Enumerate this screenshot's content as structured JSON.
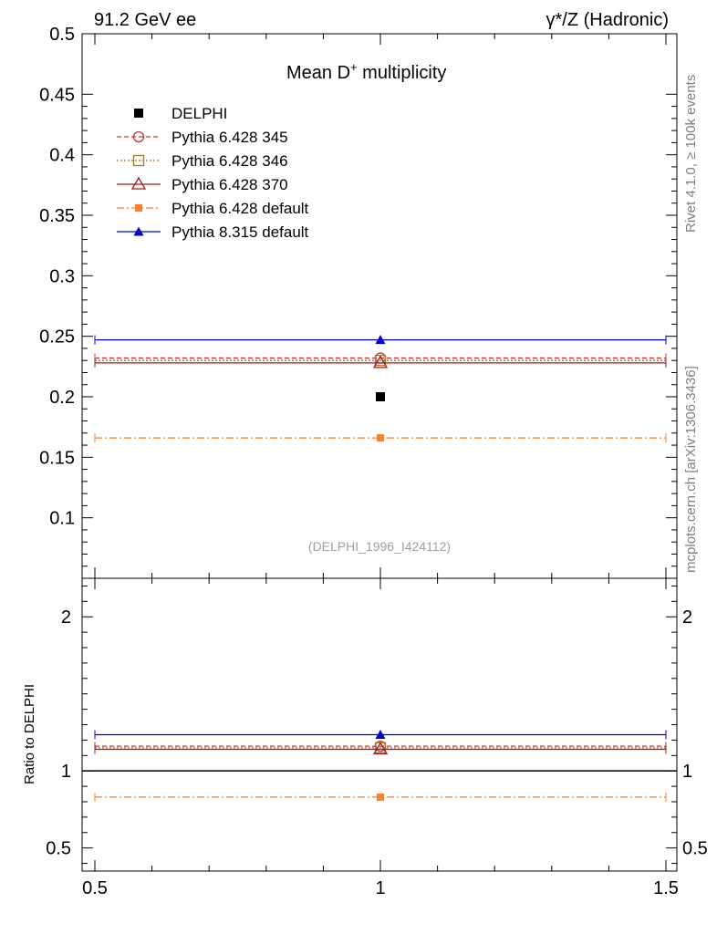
{
  "header": {
    "left": "91.2 GeV ee",
    "right": "γ*/Z (Hadronic)"
  },
  "side_text": {
    "rivet": "Rivet 4.1.0, ≥ 100k events",
    "mcplots": "mcplots.cern.ch [arXiv:1306.3436]"
  },
  "chart_data": {
    "type": "scatter",
    "title_main": "Mean D",
    "title_sup": "+",
    "title_rest": " multiplicity",
    "analysis_id": "(DELPHI_1996_I424112)",
    "xlim": [
      0.5,
      1.5
    ],
    "ylim": [
      0.05,
      0.5
    ],
    "ratio_ylim": [
      0.35,
      2.25
    ],
    "ratio_ylabel": "Ratio to DELPHI",
    "x_ticks": [
      {
        "v": 0.5,
        "label": "0.5"
      },
      {
        "v": 1,
        "label": "1"
      },
      {
        "v": 1.5,
        "label": "1.5"
      }
    ],
    "y_ticks": [
      {
        "v": 0.1,
        "label": "0.1"
      },
      {
        "v": 0.15,
        "label": "0.15"
      },
      {
        "v": 0.2,
        "label": "0.2"
      },
      {
        "v": 0.25,
        "label": "0.25"
      },
      {
        "v": 0.3,
        "label": "0.3"
      },
      {
        "v": 0.35,
        "label": "0.35"
      },
      {
        "v": 0.4,
        "label": "0.4"
      },
      {
        "v": 0.45,
        "label": "0.45"
      },
      {
        "v": 0.5,
        "label": "0.5"
      }
    ],
    "ratio_ticks": [
      {
        "v": 0.5,
        "label": "0.5"
      },
      {
        "v": 1,
        "label": "1"
      },
      {
        "v": 2,
        "label": "2"
      }
    ],
    "data": {
      "name": "DELPHI",
      "x": 1.0,
      "y": 0.2
    },
    "series": [
      {
        "name": "Pythia 6.428 345",
        "value": 0.232,
        "ratio": 1.16,
        "color": "#c0393b",
        "dash": "5,3",
        "marker": "open-circle"
      },
      {
        "name": "Pythia 6.428 346",
        "value": 0.23,
        "ratio": 1.15,
        "color": "#a07a2a",
        "dash": "2,2",
        "marker": "open-square"
      },
      {
        "name": "Pythia 6.428 370",
        "value": 0.228,
        "ratio": 1.14,
        "color": "#9b1c1c",
        "dash": "",
        "marker": "open-triangle"
      },
      {
        "name": "Pythia 6.428 default",
        "value": 0.166,
        "ratio": 0.83,
        "color": "#ff7f2a",
        "dash": "8,3,2,3",
        "marker": "filled-square"
      },
      {
        "name": "Pythia 8.315 default",
        "value": 0.247,
        "ratio": 1.235,
        "color": "#0000cc",
        "dash": "",
        "marker": "filled-triangle"
      }
    ]
  }
}
